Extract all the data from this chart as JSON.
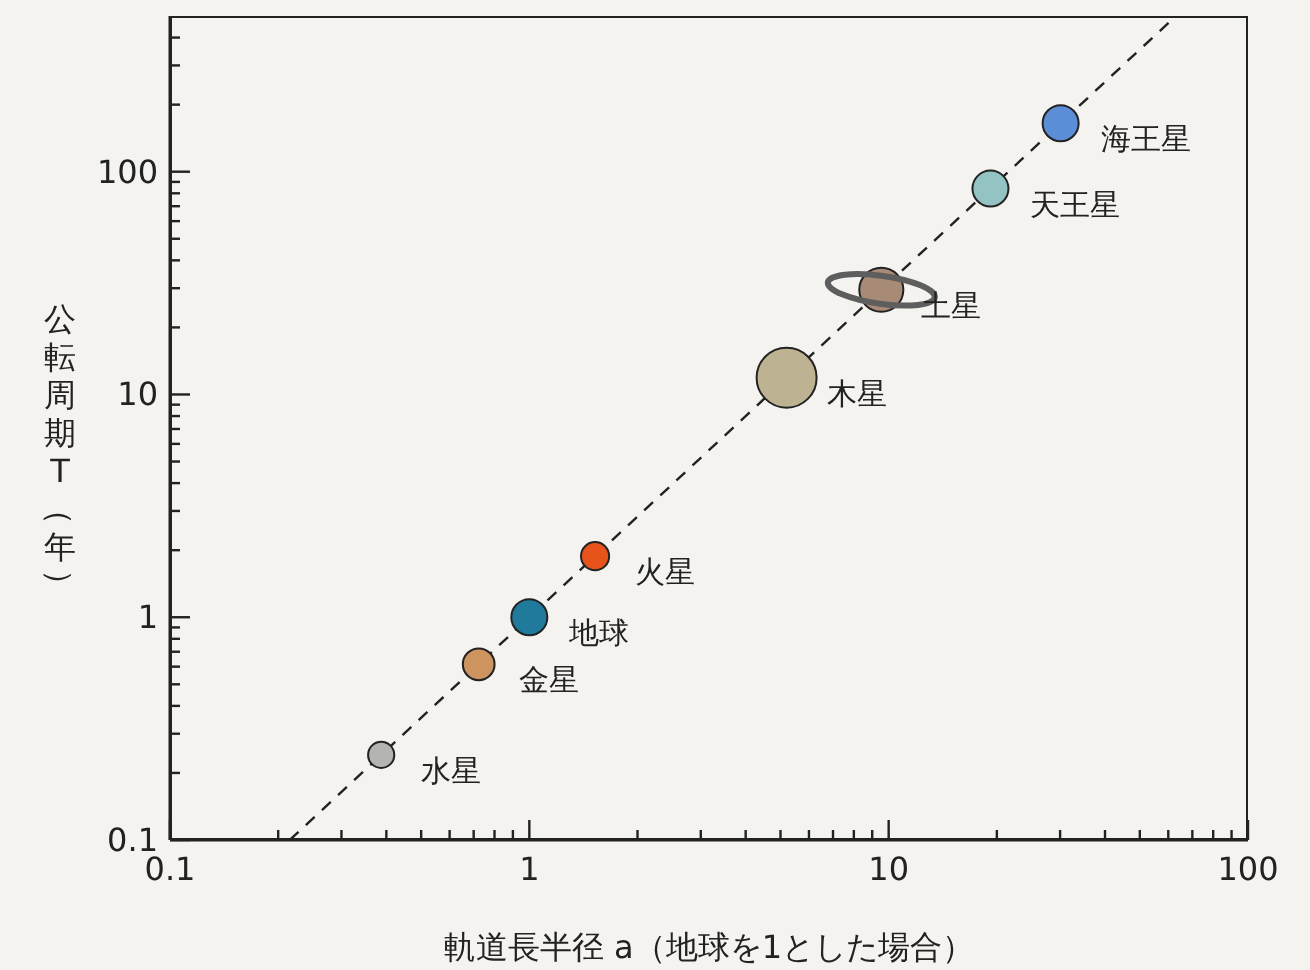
{
  "chart_data": {
    "type": "bubble",
    "xlabel": "軌道長半径 a（地球を1とした場合）",
    "ylabel": "公転周期 T（年）",
    "log": "xy",
    "xlim": [
      0.1,
      100
    ],
    "ylim": [
      0.1,
      500
    ],
    "xticks": [
      0.1,
      {
        "value": 0.2,
        "label": null
      },
      {
        "value": 0.3,
        "label": null
      },
      {
        "value": 0.4,
        "label": null
      },
      {
        "value": 0.5,
        "label": null
      },
      {
        "value": 0.6,
        "label": null
      },
      {
        "value": 0.7,
        "label": null
      },
      {
        "value": 0.8,
        "label": null
      },
      {
        "value": 0.9,
        "label": null
      },
      1,
      {
        "value": 2,
        "label": null
      },
      {
        "value": 3,
        "label": null
      },
      {
        "value": 4,
        "label": null
      },
      {
        "value": 5,
        "label": null
      },
      {
        "value": 6,
        "label": null
      },
      {
        "value": 7,
        "label": null
      },
      {
        "value": 8,
        "label": null
      },
      {
        "value": 9,
        "label": null
      },
      10,
      {
        "value": 20,
        "label": null
      },
      {
        "value": 30,
        "label": null
      },
      {
        "value": 40,
        "label": null
      },
      {
        "value": 50,
        "label": null
      },
      {
        "value": 60,
        "label": null
      },
      {
        "value": 70,
        "label": null
      },
      {
        "value": 80,
        "label": null
      },
      {
        "value": 90,
        "label": null
      },
      100
    ],
    "yticks": [
      0.1,
      {
        "value": 0.2,
        "label": null
      },
      {
        "value": 0.3,
        "label": null
      },
      {
        "value": 0.4,
        "label": null
      },
      {
        "value": 0.5,
        "label": null
      },
      {
        "value": 0.6,
        "label": null
      },
      {
        "value": 0.7,
        "label": null
      },
      {
        "value": 0.8,
        "label": null
      },
      {
        "value": 0.9,
        "label": null
      },
      1,
      {
        "value": 2,
        "label": null
      },
      {
        "value": 3,
        "label": null
      },
      {
        "value": 4,
        "label": null
      },
      {
        "value": 5,
        "label": null
      },
      {
        "value": 6,
        "label": null
      },
      {
        "value": 7,
        "label": null
      },
      {
        "value": 8,
        "label": null
      },
      {
        "value": 9,
        "label": null
      },
      10,
      {
        "value": 20,
        "label": null
      },
      {
        "value": 30,
        "label": null
      },
      {
        "value": 40,
        "label": null
      },
      {
        "value": 50,
        "label": null
      },
      {
        "value": 60,
        "label": null
      },
      {
        "value": 70,
        "label": null
      },
      {
        "value": 80,
        "label": null
      },
      {
        "value": 90,
        "label": null
      },
      100,
      {
        "value": 200,
        "label": null
      },
      {
        "value": 300,
        "label": null
      },
      {
        "value": 400,
        "label": null
      }
    ],
    "series": [
      {
        "x": [
          0.387,
          0.723,
          1,
          1.524,
          5.2,
          9.54,
          19.2,
          30.1
        ],
        "values": [
          0.241,
          0.615,
          1,
          1.88,
          11.9,
          29.5,
          84,
          165
        ],
        "sizes": [
          0.19,
          0.28,
          0.36,
          0.22,
          1,
          0.54,
          0.36,
          0.36
        ],
        "colors": [
          "#b4b4b2",
          "#cd9460",
          "#1f7a9c",
          "#e8531c",
          "#bdb291",
          "#a88b76",
          "#93c3c2",
          "#5b8ed6"
        ]
      },
      {
        "type": "line",
        "x": [
          0.2154,
          63
        ],
        "values": [
          0.1,
          500
        ],
        "color": "#222222",
        "line_style": "dashed",
        "marker": "none"
      }
    ],
    "annotations": [
      {
        "text": "水星",
        "x": 0.387,
        "y": 0.241
      },
      {
        "text": "金星",
        "x": 0.723,
        "y": 0.615
      },
      {
        "text": "地球",
        "x": 1,
        "y": 1
      },
      {
        "text": "火星",
        "x": 1.524,
        "y": 1.88
      },
      {
        "text": "木星",
        "x": 5.2,
        "y": 11.9
      },
      {
        "text": "土星",
        "x": 9.54,
        "y": 29.5
      },
      {
        "text": "天王星",
        "x": 19.2,
        "y": 84
      },
      {
        "text": "海王星",
        "x": 30.1,
        "y": 165
      }
    ]
  }
}
